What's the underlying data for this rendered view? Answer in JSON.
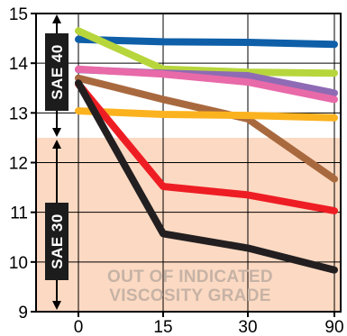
{
  "chart_data": {
    "type": "line",
    "categories": [
      "0",
      "15",
      "30",
      "90"
    ],
    "ylim": [
      9,
      15
    ],
    "yticks": [
      "9",
      "10",
      "11",
      "12",
      "13",
      "14",
      "15"
    ],
    "grid": true,
    "bands": [
      {
        "label": "SAE 40",
        "range": [
          12.5,
          15
        ]
      },
      {
        "label": "SAE 30",
        "range": [
          9,
          12.5
        ]
      }
    ],
    "shaded_region": {
      "range": [
        9,
        12.5
      ],
      "color": "#fcd9c2"
    },
    "annotation": {
      "line1": "OUT OF INDICATED",
      "line2": "VISCOSITY GRADE"
    },
    "series": [
      {
        "color": "#0e5fa8",
        "values": [
          14.48,
          14.43,
          14.42,
          14.38
        ]
      },
      {
        "color": "#b7d63c",
        "values": [
          14.65,
          13.88,
          13.82,
          13.8
        ]
      },
      {
        "color": "#8e6bb4",
        "values": [
          13.87,
          13.8,
          13.75,
          13.4
        ]
      },
      {
        "color": "#e86aa8",
        "values": [
          13.88,
          13.78,
          13.62,
          13.27
        ]
      },
      {
        "color": "#a9693f",
        "values": [
          13.7,
          13.27,
          12.88,
          11.67
        ]
      },
      {
        "color": "#fbb21f",
        "values": [
          13.04,
          12.97,
          12.95,
          12.9
        ]
      },
      {
        "color": "#ee1d24",
        "values": [
          13.58,
          11.52,
          11.35,
          11.03
        ]
      },
      {
        "color": "#231f20",
        "values": [
          13.6,
          10.57,
          10.28,
          9.84
        ]
      }
    ]
  }
}
